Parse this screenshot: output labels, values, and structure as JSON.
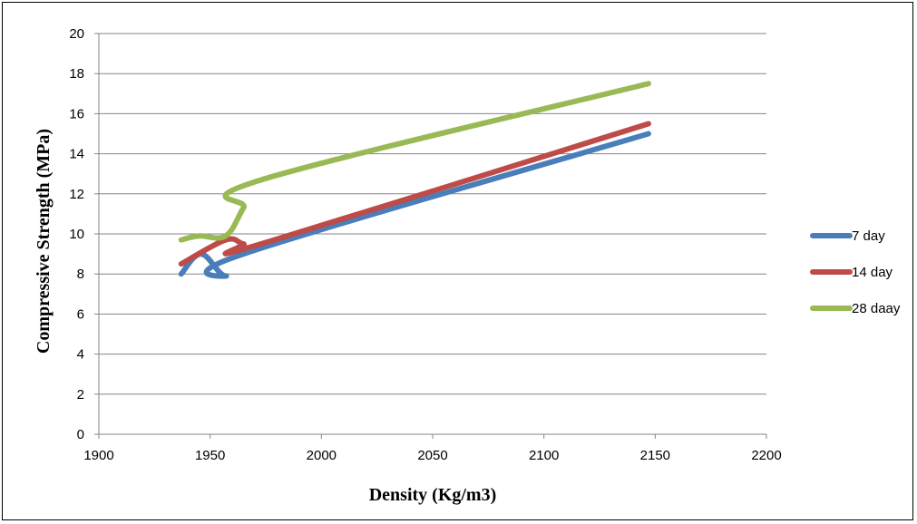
{
  "chart_data": {
    "type": "line",
    "title": "",
    "xlabel": "Density (Kg/m3)",
    "ylabel": "Compressive Strength  (MPa)",
    "xlim": [
      1900,
      2200
    ],
    "ylim": [
      0,
      20
    ],
    "xticks": [
      1900,
      1950,
      2000,
      2050,
      2100,
      2150,
      2200
    ],
    "yticks": [
      0,
      2,
      4,
      6,
      8,
      10,
      12,
      14,
      16,
      18,
      20
    ],
    "grid": "horizontal",
    "legend_position": "right",
    "series": [
      {
        "name": "7 day",
        "color": "#4a7ebb",
        "x": [
          1937,
          1946,
          1957,
          1965,
          2147
        ],
        "y": [
          8.0,
          9.0,
          7.9,
          9.0,
          15.0
        ]
      },
      {
        "name": "14 day",
        "color": "#be4b48",
        "x": [
          1937,
          1957,
          1965,
          1973,
          2147
        ],
        "y": [
          8.5,
          9.7,
          9.5,
          9.5,
          15.5
        ]
      },
      {
        "name": "28 daay",
        "color": "#98b954",
        "x": [
          1937,
          1945,
          1957,
          1965,
          1973,
          2147
        ],
        "y": [
          9.7,
          9.9,
          9.9,
          11.3,
          12.7,
          17.5
        ]
      }
    ]
  }
}
